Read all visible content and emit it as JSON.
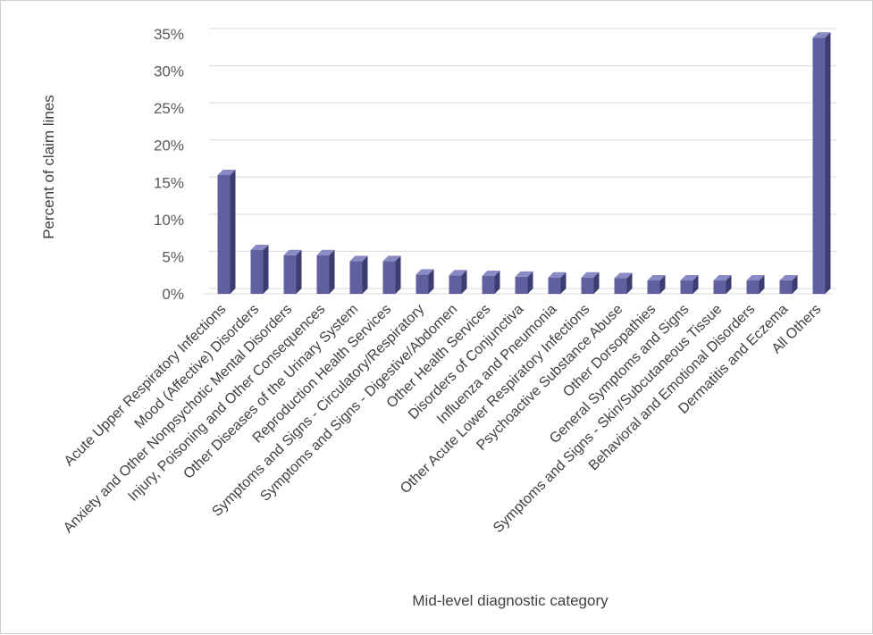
{
  "chart_data": {
    "type": "bar",
    "style": "3d-column",
    "categories": [
      "Acute Upper Respiratory Infections",
      "Mood (Affective) Disorders",
      "Anxiety and Other Nonpsychotic Mental Disorders",
      "Injury, Poisoning and Other Consequences",
      "Other Diseases of the Urinary System",
      "Reproduction Health Services",
      "Symptoms and Signs - Circulatory/Respiratory",
      "Symptoms and Signs - Digestive/Abdomen",
      "Other Health Services",
      "Disorders of Conjunctiva",
      "Influenza and Pneumonia",
      "Other Acute Lower Respiratory Infections",
      "Psychoactive Substance Abuse",
      "Other Dorsopathies",
      "General Symptoms and Signs",
      "Symptoms and Signs - Skin/Subcutaneous Tissue",
      "Behavioral and Emotional Disorders",
      "Dermatitis and Eczema",
      "All Others"
    ],
    "values": [
      16.0,
      5.9,
      5.2,
      5.2,
      4.4,
      4.4,
      2.6,
      2.5,
      2.4,
      2.3,
      2.2,
      2.2,
      2.1,
      1.8,
      1.8,
      1.8,
      1.8,
      1.8,
      34.5
    ],
    "xlabel": "Mid-level diagnostic category",
    "ylabel": "Percent of claim lines",
    "ylim": [
      0,
      35
    ],
    "yticks": [
      "0%",
      "5%",
      "10%",
      "15%",
      "20%",
      "25%",
      "30%",
      "35%"
    ],
    "ytick_values": [
      0,
      5,
      10,
      15,
      20,
      25,
      30,
      35
    ],
    "grid": true,
    "colors": {
      "bar_front": "#6060a0",
      "bar_side": "#3c3c70",
      "bar_top": "#8a8ac4"
    }
  }
}
